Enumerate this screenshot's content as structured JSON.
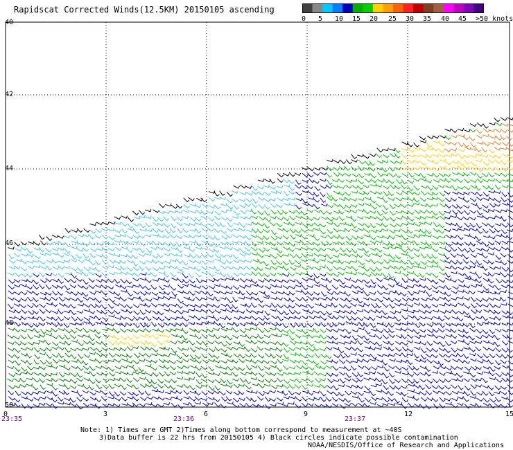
{
  "title": "Rapidscat Corrected Winds(12.5KM) 20150105 ascending",
  "legend": {
    "colors": [
      "#404040",
      "#888888",
      "#00c8ff",
      "#0080ff",
      "#0000c0",
      "#00b000",
      "#00d000",
      "#ffd000",
      "#ffa000",
      "#ff6000",
      "#ff2020",
      "#c00000",
      "#804020",
      "#a06040",
      "#ff00ff",
      "#c000c0",
      "#8000c0",
      "#400080"
    ],
    "tick_labels": [
      "0",
      "5",
      "10",
      "15",
      "20",
      "25",
      "30",
      "35",
      "40",
      "45",
      ">50 knots"
    ]
  },
  "map": {
    "lat_labels": [
      "40",
      "42",
      "44",
      "46",
      "48",
      "50"
    ],
    "lon_labels": [
      "0",
      "3",
      "6",
      "9",
      "12",
      "15"
    ],
    "time_labels": [
      "23:35",
      "23:36",
      "23:37"
    ],
    "speed_colors": {
      "calm": "#000000",
      "light": "#40c8e8",
      "moderate": "#0000c0",
      "fresh": "#00c000",
      "strong": "#008000",
      "gale": "#ffd000",
      "storm": "#e08020"
    }
  },
  "notes": {
    "line1": "Note: 1) Times are GMT 2)Times along bottom correspond to measurement at ~40S",
    "line2": "3)Data buffer is 22 hrs from 20150105 4) Black circles indicate possible contamination"
  },
  "credit": "NOAA/NESDIS/Office of Research and Applications"
}
